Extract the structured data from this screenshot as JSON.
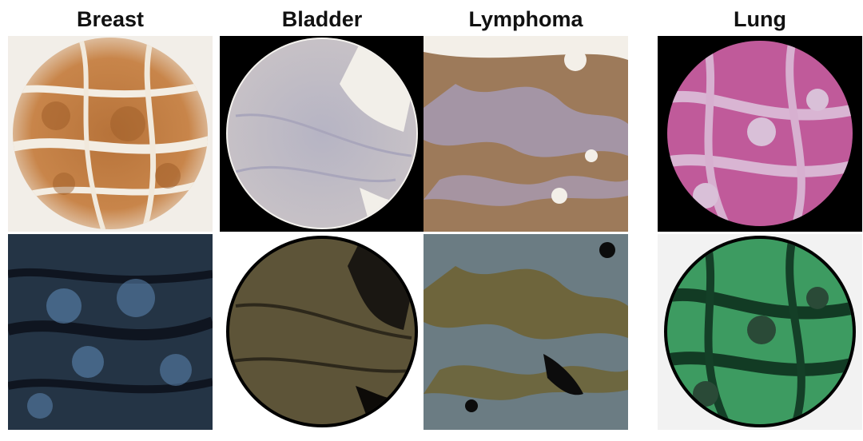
{
  "columns": [
    {
      "id": "breast",
      "title": "Breast"
    },
    {
      "id": "bladder",
      "title": "Bladder"
    },
    {
      "id": "lymphoma",
      "title": "Lymphoma"
    },
    {
      "id": "lung",
      "title": "Lung"
    }
  ]
}
